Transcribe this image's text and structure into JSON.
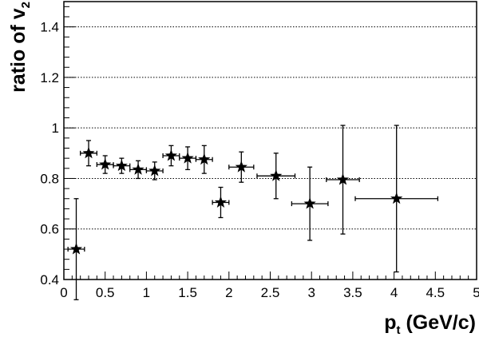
{
  "chart_data": {
    "type": "scatter",
    "title": "",
    "xlabel": {
      "main": "p",
      "sub": "t",
      "rest": " (GeV/c)"
    },
    "ylabel": {
      "main": "ratio of v",
      "sub": "2"
    },
    "xlim": [
      0,
      5
    ],
    "ylim": [
      0.4,
      1.5
    ],
    "x_ticks": [
      0,
      0.5,
      1,
      1.5,
      2,
      2.5,
      3,
      3.5,
      4,
      4.5,
      5
    ],
    "x_tick_labels": [
      "0",
      "0.5",
      "1",
      "1.5",
      "2",
      "2.5",
      "3",
      "3.5",
      "4",
      "4.5",
      "5"
    ],
    "y_ticks": [
      0.4,
      0.6,
      0.8,
      1.0,
      1.2,
      1.4
    ],
    "y_tick_labels": [
      "0.4",
      "0.6",
      "0.8",
      "1",
      "1.2",
      "1.4"
    ],
    "grid": "horizontal dotted at major y ticks",
    "marker": "star",
    "color": "#000000",
    "points": [
      {
        "x": 0.15,
        "y": 0.52,
        "xerr": 0.1,
        "yerr": 0.2
      },
      {
        "x": 0.3,
        "y": 0.9,
        "xerr": 0.1,
        "yerr": 0.05
      },
      {
        "x": 0.5,
        "y": 0.855,
        "xerr": 0.1,
        "yerr": 0.035
      },
      {
        "x": 0.7,
        "y": 0.85,
        "xerr": 0.1,
        "yerr": 0.03
      },
      {
        "x": 0.9,
        "y": 0.835,
        "xerr": 0.1,
        "yerr": 0.035
      },
      {
        "x": 1.1,
        "y": 0.83,
        "xerr": 0.1,
        "yerr": 0.035
      },
      {
        "x": 1.3,
        "y": 0.89,
        "xerr": 0.1,
        "yerr": 0.04
      },
      {
        "x": 1.5,
        "y": 0.88,
        "xerr": 0.1,
        "yerr": 0.045
      },
      {
        "x": 1.7,
        "y": 0.875,
        "xerr": 0.1,
        "yerr": 0.055
      },
      {
        "x": 1.9,
        "y": 0.705,
        "xerr": 0.1,
        "yerr": 0.06
      },
      {
        "x": 2.15,
        "y": 0.845,
        "xerr": 0.15,
        "yerr": 0.06
      },
      {
        "x": 2.57,
        "y": 0.81,
        "xerr": 0.23,
        "yerr": 0.09
      },
      {
        "x": 2.98,
        "y": 0.7,
        "xerr": 0.22,
        "yerr": 0.145
      },
      {
        "x": 3.38,
        "y": 0.795,
        "xerr": 0.2,
        "yerr": 0.215
      },
      {
        "x": 4.03,
        "y": 0.72,
        "xerr": 0.5,
        "yerr": 0.29
      }
    ]
  }
}
